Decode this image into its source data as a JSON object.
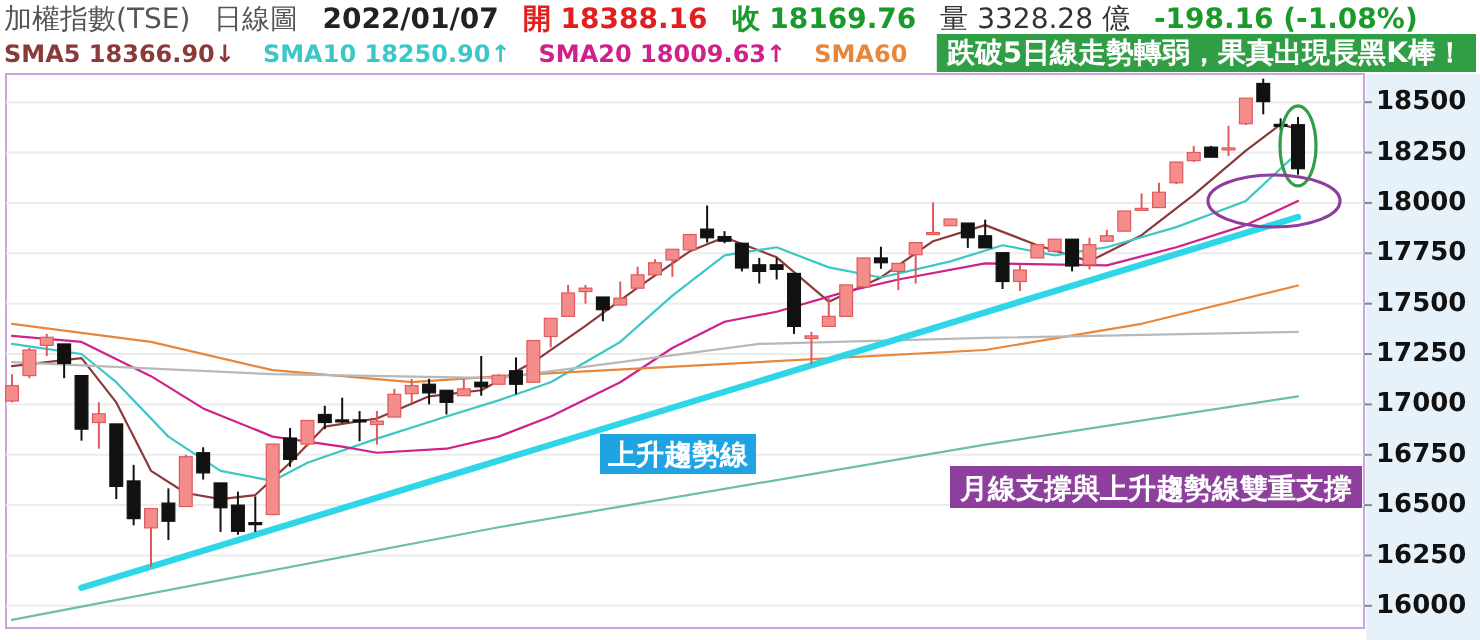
{
  "chart_data": {
    "type": "candlestick",
    "title": "加權指數(TSE)",
    "subtitle": "日線圖",
    "annotations": [
      "2022/01/07",
      "開 18388.16",
      "收 18169.76",
      "量 3328.28 億",
      "-198.16 (-1.08%)",
      "跌破5日線走勢轉弱，果真出現長黑K棒！",
      "上升趨勢線",
      "月線支撐與上升趨勢線雙重支撐"
    ],
    "categories": [
      null,
      null,
      null,
      null,
      null,
      null,
      null,
      null,
      null,
      null,
      null,
      null,
      null,
      null,
      null,
      null,
      null,
      null,
      null,
      null,
      null,
      null,
      null,
      null,
      null,
      null,
      null,
      null,
      null,
      null,
      null,
      null,
      null,
      null,
      null,
      null,
      null,
      null,
      null,
      null,
      null,
      null,
      null,
      null,
      null,
      null,
      null,
      null,
      null,
      null,
      null,
      null,
      null,
      null,
      null,
      null,
      null,
      null,
      null,
      null,
      null,
      null,
      null,
      null,
      null,
      null,
      null,
      null,
      null,
      null,
      null,
      null,
      null,
      null,
      null
    ],
    "ohlc": [
      [
        17017,
        17150,
        17010,
        17093
      ],
      [
        17143,
        17280,
        17130,
        17270
      ],
      [
        17293,
        17350,
        17240,
        17333
      ],
      [
        17300,
        17300,
        17130,
        17203
      ],
      [
        17143,
        17143,
        16820,
        16877
      ],
      [
        16910,
        17010,
        16780,
        16953
      ],
      [
        16903,
        16903,
        16530,
        16593
      ],
      [
        16620,
        16700,
        16400,
        16433
      ],
      [
        16387,
        16483,
        16193,
        16483
      ],
      [
        16510,
        16583,
        16327,
        16420
      ],
      [
        16493,
        16750,
        16493,
        16740
      ],
      [
        16760,
        16787,
        16627,
        16660
      ],
      [
        16610,
        16610,
        16367,
        16487
      ],
      [
        16500,
        16567,
        16353,
        16370
      ],
      [
        16413,
        16543,
        16367,
        16407
      ],
      [
        16453,
        16803,
        16453,
        16803
      ],
      [
        16833,
        16883,
        16690,
        16727
      ],
      [
        16803,
        16920,
        16790,
        16920
      ],
      [
        16950,
        16993,
        16877,
        16910
      ],
      [
        16923,
        17033,
        16907,
        16917
      ],
      [
        16923,
        16967,
        16817,
        16917
      ],
      [
        16900,
        16967,
        16800,
        16917
      ],
      [
        16937,
        17077,
        16937,
        17050
      ],
      [
        17053,
        17127,
        17007,
        17093
      ],
      [
        17100,
        17127,
        17000,
        17057
      ],
      [
        17070,
        17070,
        16950,
        17010
      ],
      [
        17043,
        17127,
        17043,
        17077
      ],
      [
        17110,
        17240,
        17043,
        17087
      ],
      [
        17100,
        17150,
        17100,
        17145
      ],
      [
        17167,
        17233,
        17050,
        17100
      ],
      [
        17110,
        17317,
        17110,
        17317
      ],
      [
        17337,
        17427,
        17283,
        17427
      ],
      [
        17437,
        17593,
        17437,
        17553
      ],
      [
        17560,
        17593,
        17500,
        17577
      ],
      [
        17533,
        17533,
        17413,
        17470
      ],
      [
        17493,
        17610,
        17493,
        17527
      ],
      [
        17577,
        17683,
        17577,
        17643
      ],
      [
        17643,
        17720,
        17643,
        17703
      ],
      [
        17717,
        17770,
        17633,
        17770
      ],
      [
        17767,
        17843,
        17767,
        17843
      ],
      [
        17870,
        17987,
        17803,
        17827
      ],
      [
        17833,
        17860,
        17800,
        17810
      ],
      [
        17800,
        17800,
        17660,
        17677
      ],
      [
        17693,
        17727,
        17600,
        17660
      ],
      [
        17693,
        17727,
        17620,
        17670
      ],
      [
        17650,
        17650,
        17350,
        17387
      ],
      [
        17327,
        17360,
        17200,
        17340
      ],
      [
        17387,
        17533,
        17387,
        17437
      ],
      [
        17437,
        17593,
        17437,
        17593
      ],
      [
        17583,
        17727,
        17583,
        17727
      ],
      [
        17727,
        17783,
        17673,
        17703
      ],
      [
        17660,
        17700,
        17567,
        17700
      ],
      [
        17743,
        17803,
        17600,
        17803
      ],
      [
        17847,
        18003,
        17847,
        17853
      ],
      [
        17887,
        17920,
        17887,
        17920
      ],
      [
        17900,
        17900,
        17777,
        17827
      ],
      [
        17837,
        17917,
        17777,
        17777
      ],
      [
        17753,
        17753,
        17573,
        17610
      ],
      [
        17610,
        17693,
        17563,
        17667
      ],
      [
        17727,
        17793,
        17727,
        17793
      ],
      [
        17760,
        17820,
        17753,
        17820
      ],
      [
        17820,
        17820,
        17660,
        17687
      ],
      [
        17693,
        17827,
        17670,
        17793
      ],
      [
        17810,
        17867,
        17810,
        17837
      ],
      [
        17860,
        17960,
        17860,
        17960
      ],
      [
        17967,
        18047,
        17967,
        17973
      ],
      [
        17977,
        18100,
        17977,
        18053
      ],
      [
        18100,
        18203,
        18093,
        18203
      ],
      [
        18210,
        18283,
        18203,
        18250
      ],
      [
        18277,
        18283,
        18227,
        18227
      ],
      [
        18267,
        18383,
        18233,
        18273
      ],
      [
        18393,
        18520,
        18387,
        18520
      ],
      [
        18593,
        18617,
        18440,
        18503
      ],
      [
        18390,
        18420,
        18360,
        18385
      ],
      [
        18388.16,
        18427,
        18140,
        18169.76
      ]
    ],
    "series": [
      {
        "name": "SMA5 18366.90↓",
        "type": "line",
        "color": "#8b3a3a",
        "values": [
          17190,
          null,
          null,
          null,
          17230,
          null,
          17010,
          null,
          16670,
          null,
          16560,
          null,
          16530,
          null,
          16550,
          null,
          16710,
          null,
          16890,
          null,
          null,
          16930,
          null,
          null,
          17040,
          null,
          null,
          17070,
          null,
          null,
          17210,
          null,
          null,
          17390,
          null,
          null,
          17580,
          null,
          null,
          17760,
          null,
          17830,
          null,
          null,
          17730,
          null,
          null,
          17510,
          null,
          null,
          17630,
          null,
          null,
          17810,
          null,
          null,
          17890,
          null,
          null,
          17790,
          null,
          null,
          17710,
          null,
          null,
          17840,
          null,
          null,
          18040,
          null,
          null,
          18260,
          null,
          18390,
          18366.9
        ]
      },
      {
        "name": "SMA10 18250.90↑",
        "type": "line",
        "color": "#3cc7c7",
        "values": [
          17300,
          null,
          null,
          null,
          17250,
          null,
          17110,
          null,
          null,
          16840,
          null,
          null,
          16670,
          null,
          null,
          16620,
          null,
          16710,
          null,
          null,
          null,
          16830,
          null,
          null,
          null,
          16940,
          null,
          null,
          17020,
          null,
          null,
          17110,
          null,
          null,
          null,
          17310,
          null,
          null,
          17540,
          null,
          null,
          17740,
          null,
          null,
          17780,
          null,
          null,
          17680,
          null,
          null,
          17630,
          null,
          null,
          null,
          17710,
          null,
          null,
          17790,
          null,
          null,
          17740,
          null,
          null,
          17780,
          null,
          null,
          null,
          17880,
          null,
          null,
          null,
          18010,
          null,
          null,
          18250.9
        ]
      },
      {
        "name": "SMA20 18009.63↑",
        "type": "line",
        "color": "#d0208a",
        "values": [
          17340,
          null,
          null,
          null,
          17310,
          null,
          null,
          null,
          17140,
          null,
          null,
          16980,
          null,
          null,
          null,
          16840,
          null,
          null,
          null,
          16790,
          null,
          16760,
          null,
          null,
          null,
          16780,
          null,
          null,
          16840,
          null,
          null,
          16940,
          null,
          null,
          null,
          17110,
          null,
          null,
          17280,
          null,
          null,
          17410,
          null,
          null,
          17460,
          null,
          null,
          null,
          17560,
          null,
          null,
          17620,
          null,
          null,
          null,
          null,
          17700,
          null,
          null,
          null,
          null,
          null,
          null,
          17690,
          null,
          null,
          null,
          17780,
          null,
          null,
          null,
          17890,
          null,
          null,
          18009.63
        ]
      },
      {
        "name": "SMA60",
        "type": "line",
        "color": "#e8863a",
        "values": [
          17400,
          null,
          null,
          null,
          null,
          null,
          null,
          null,
          17310,
          null,
          null,
          null,
          null,
          null,
          null,
          17170,
          null,
          null,
          null,
          null,
          null,
          null,
          null,
          17110,
          null,
          null,
          null,
          null,
          null,
          null,
          17150,
          null,
          null,
          null,
          null,
          null,
          null,
          null,
          null,
          null,
          null,
          null,
          null,
          17210,
          null,
          null,
          null,
          null,
          null,
          null,
          null,
          null,
          null,
          null,
          null,
          null,
          17270,
          null,
          null,
          null,
          null,
          null,
          null,
          null,
          null,
          17400,
          null,
          null,
          null,
          null,
          null,
          null,
          null,
          null,
          17590
        ]
      },
      {
        "type": "line",
        "color": "#b8b8b8",
        "values": [
          17210,
          null,
          null,
          null,
          null,
          null,
          null,
          null,
          null,
          null,
          null,
          null,
          null,
          null,
          null,
          17150,
          null,
          null,
          null,
          null,
          null,
          null,
          null,
          null,
          null,
          null,
          null,
          null,
          17130,
          null,
          null,
          null,
          null,
          null,
          null,
          null,
          null,
          null,
          null,
          null,
          null,
          null,
          null,
          17300,
          null,
          null,
          null,
          null,
          null,
          null,
          null,
          null,
          null,
          null,
          null,
          null,
          17330,
          null,
          null,
          null,
          null,
          null,
          null,
          null,
          null,
          null,
          null,
          null,
          null,
          null,
          null,
          null,
          null,
          null,
          17360
        ]
      },
      {
        "type": "line",
        "color": "#6cbf9f",
        "values": [
          15930,
          null,
          null,
          null,
          null,
          null,
          null,
          null,
          null,
          null,
          null,
          null,
          null,
          null,
          null,
          null,
          null,
          null,
          null,
          null,
          null,
          null,
          null,
          null,
          null,
          null,
          null,
          null,
          16390,
          null,
          null,
          null,
          null,
          null,
          null,
          null,
          null,
          null,
          null,
          null,
          null,
          null,
          null,
          null,
          null,
          null,
          null,
          null,
          null,
          null,
          null,
          null,
          null,
          null,
          null,
          null,
          16800,
          null,
          null,
          null,
          null,
          null,
          null,
          null,
          null,
          null,
          null,
          null,
          null,
          null,
          null,
          null,
          null,
          null,
          17040
        ]
      },
      {
        "type": "line",
        "color": "#2fd6e8",
        "values": [
          null,
          null,
          null,
          null,
          16090,
          null,
          null,
          null,
          null,
          null,
          null,
          null,
          null,
          null,
          null,
          null,
          null,
          null,
          null,
          null,
          null,
          null,
          null,
          null,
          null,
          null,
          null,
          null,
          null,
          null,
          null,
          null,
          null,
          null,
          null,
          null,
          null,
          null,
          null,
          null,
          null,
          null,
          null,
          null,
          null,
          null,
          null,
          null,
          null,
          null,
          null,
          null,
          null,
          null,
          null,
          null,
          null,
          null,
          null,
          null,
          null,
          null,
          null,
          null,
          null,
          null,
          null,
          null,
          null,
          null,
          null,
          null,
          null,
          null,
          17930
        ]
      }
    ],
    "ylim": [
      15890,
      18640
    ],
    "yticks": [
      16000,
      16250,
      16500,
      16750,
      17000,
      17250,
      17500,
      17750,
      18000,
      18250,
      18500
    ],
    "grid": "y",
    "legend": "top left"
  }
}
